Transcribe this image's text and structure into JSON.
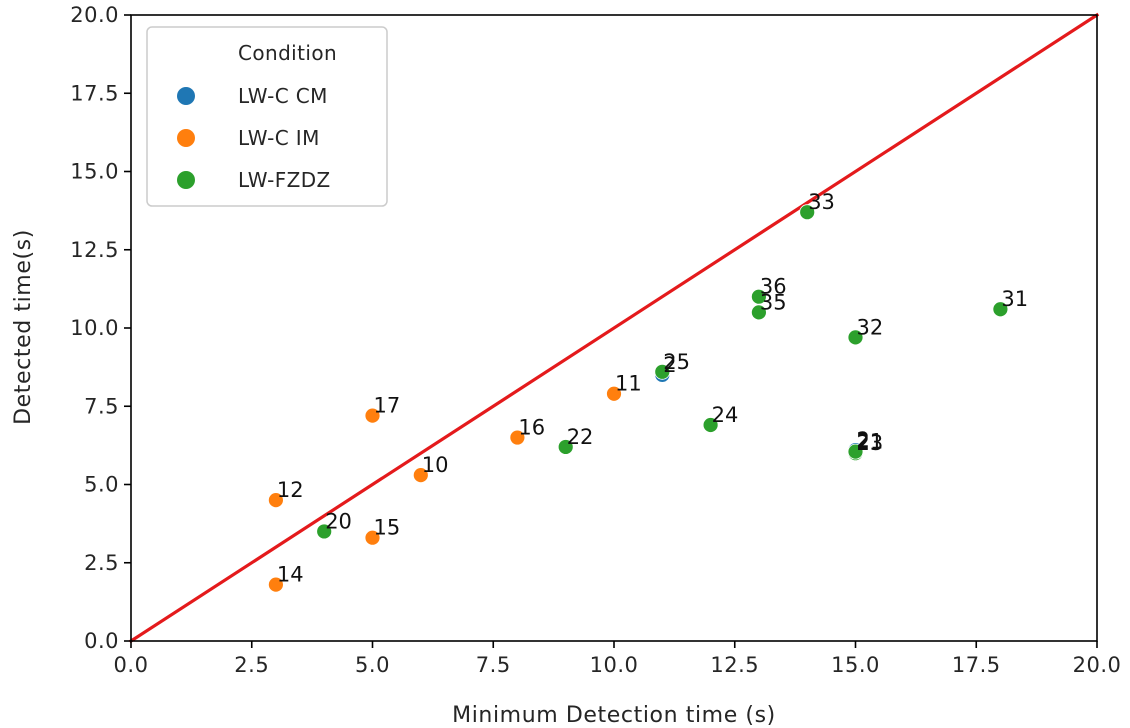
{
  "chart_data": {
    "type": "scatter",
    "title": "",
    "xlabel": "Minimum Detection time (s)",
    "ylabel": "Detected time(s)",
    "xlim": [
      0,
      20
    ],
    "ylim": [
      0,
      20
    ],
    "x_ticks": [
      "0.0",
      "2.5",
      "5.0",
      "7.5",
      "10.0",
      "12.5",
      "15.0",
      "17.5",
      "20.0"
    ],
    "y_ticks": [
      "0.0",
      "2.5",
      "5.0",
      "7.5",
      "10.0",
      "12.5",
      "15.0",
      "17.5",
      "20.0"
    ],
    "grid": false,
    "legend": {
      "title": "Condition",
      "placement": "top-left",
      "entries": [
        {
          "name": "LW-C CM",
          "color": "#1f77b4"
        },
        {
          "name": "LW-C IM",
          "color": "#ff7f0e"
        },
        {
          "name": "LW-FZDZ",
          "color": "#2ca02c"
        }
      ]
    },
    "reference_line": {
      "x": [
        0,
        20
      ],
      "y": [
        0,
        20
      ],
      "color": "#e41a1c"
    },
    "series": [
      {
        "name": "LW-C CM",
        "color": "#1f77b4",
        "points": [
          {
            "x": 11,
            "y": 8.5,
            "label": "2"
          },
          {
            "x": 15,
            "y": 6.1,
            "label": "2"
          }
        ]
      },
      {
        "name": "LW-C IM",
        "color": "#ff7f0e",
        "points": [
          {
            "x": 3,
            "y": 1.8,
            "label": "14"
          },
          {
            "x": 3,
            "y": 4.5,
            "label": "12"
          },
          {
            "x": 5,
            "y": 3.3,
            "label": "15"
          },
          {
            "x": 5,
            "y": 7.2,
            "label": "17"
          },
          {
            "x": 6,
            "y": 5.3,
            "label": "10"
          },
          {
            "x": 8,
            "y": 6.5,
            "label": "16"
          },
          {
            "x": 10,
            "y": 7.9,
            "label": "11"
          }
        ]
      },
      {
        "name": "LW-FZDZ",
        "color": "#2ca02c",
        "points": [
          {
            "x": 4,
            "y": 3.5,
            "label": "20"
          },
          {
            "x": 9,
            "y": 6.2,
            "label": "22"
          },
          {
            "x": 11,
            "y": 8.6,
            "label": "25"
          },
          {
            "x": 12,
            "y": 6.9,
            "label": "24"
          },
          {
            "x": 13,
            "y": 10.5,
            "label": "35"
          },
          {
            "x": 13,
            "y": 11.0,
            "label": "36"
          },
          {
            "x": 14,
            "y": 13.7,
            "label": "33"
          },
          {
            "x": 15,
            "y": 6.0,
            "label": "23"
          },
          {
            "x": 15,
            "y": 6.05,
            "label": "21"
          },
          {
            "x": 15,
            "y": 9.7,
            "label": "32"
          },
          {
            "x": 18,
            "y": 10.6,
            "label": "31"
          }
        ]
      }
    ]
  }
}
